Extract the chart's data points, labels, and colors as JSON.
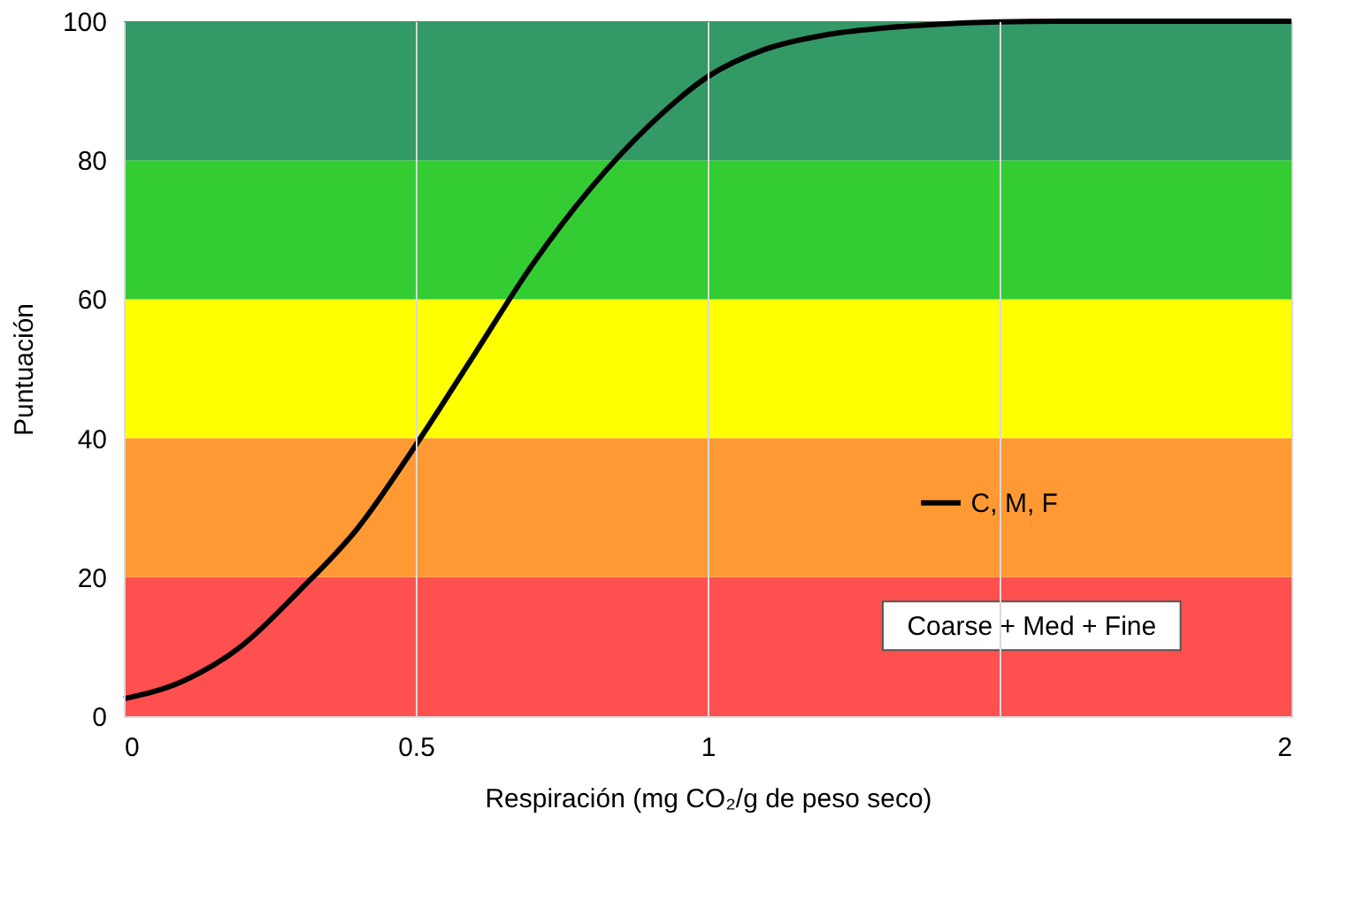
{
  "chart_data": {
    "type": "line",
    "xlabel": "Respiración (mg CO₂/g de peso seco)",
    "ylabel": "Puntuación",
    "x": [
      0,
      0.1,
      0.2,
      0.3,
      0.4,
      0.5,
      0.6,
      0.7,
      0.8,
      0.9,
      1.0,
      1.1,
      1.2,
      1.3,
      1.4,
      1.5,
      1.6,
      1.8,
      2.0
    ],
    "series": [
      {
        "name": "C, M, F",
        "color": "#000000",
        "values": [
          2.5,
          5,
          10,
          18,
          27,
          39,
          52,
          65,
          76,
          85,
          92,
          96,
          98,
          99,
          99.6,
          99.9,
          100,
          100,
          100
        ]
      }
    ],
    "xlim": [
      0,
      2
    ],
    "xticks": [
      0,
      0.5,
      1,
      {
        "value": 1.5,
        "label": null
      },
      2
    ],
    "ylim": [
      0,
      100
    ],
    "yticks": [
      0,
      20,
      40,
      60,
      80,
      100
    ],
    "grid": "x",
    "legend": "right",
    "line_style": "solid",
    "marker": "none",
    "bands": [
      {
        "axis": "y",
        "from": 0,
        "to": 20,
        "color": "#ff5050"
      },
      {
        "axis": "y",
        "from": 20,
        "to": 40,
        "color": "#ff9933"
      },
      {
        "axis": "y",
        "from": 40,
        "to": 60,
        "color": "#ffff00"
      },
      {
        "axis": "y",
        "from": 60,
        "to": 80,
        "color": "#33cc33"
      },
      {
        "axis": "y",
        "from": 80,
        "to": 100,
        "color": "#339966"
      }
    ],
    "annotations": [
      "Coarse + Med + Fine"
    ]
  }
}
